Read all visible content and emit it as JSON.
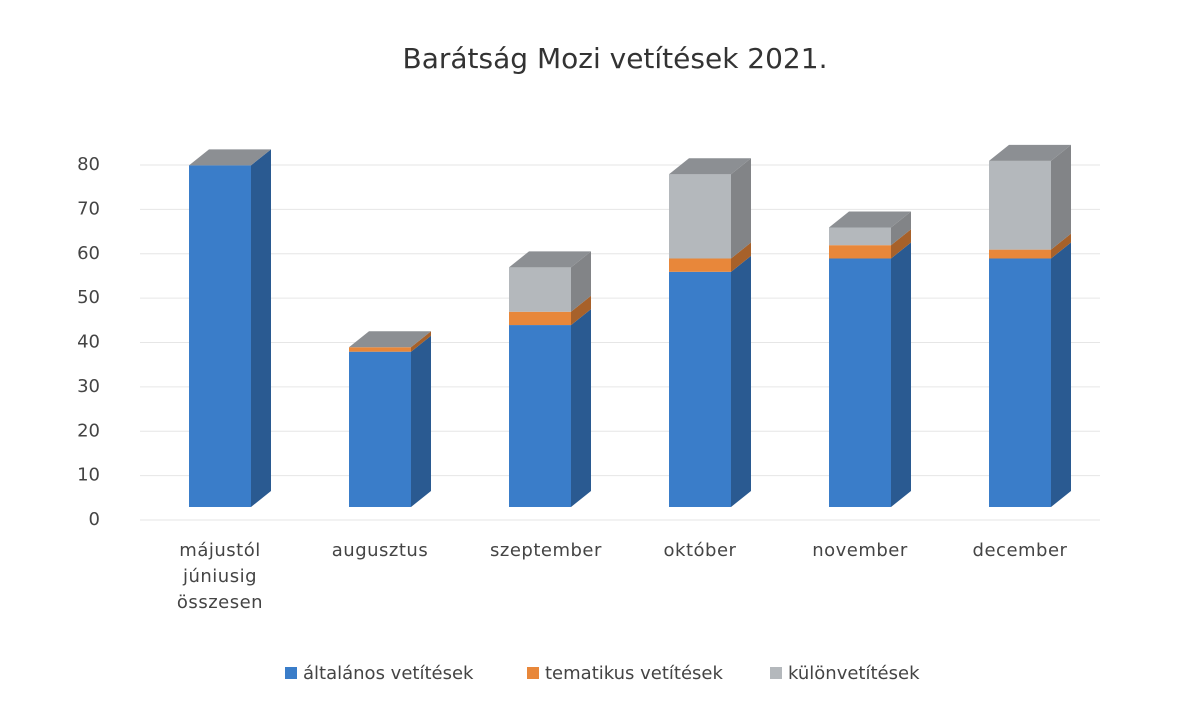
{
  "chart_data": {
    "type": "bar3d_stacked",
    "title": "Barátság Mozi vetítések 2021.",
    "categories": [
      "májustól júniusig összesen",
      "augusztus",
      "szeptember",
      "október",
      "november",
      "december"
    ],
    "series": [
      {
        "name": "általános vetítések",
        "color": "#3a7dc9",
        "values": [
          77,
          35,
          41,
          53,
          56,
          56
        ]
      },
      {
        "name": "tematikus vetítések",
        "color": "#e8873a",
        "values": [
          0,
          1,
          3,
          3,
          3,
          2
        ]
      },
      {
        "name": "különvetítések",
        "color": "#b4b8bc",
        "values": [
          0,
          0,
          10,
          19,
          4,
          20
        ]
      }
    ],
    "ylim": [
      0,
      80
    ],
    "yticks": [
      0,
      10,
      20,
      30,
      40,
      50,
      60,
      70,
      80
    ],
    "grid": true,
    "legend": "bottom"
  }
}
